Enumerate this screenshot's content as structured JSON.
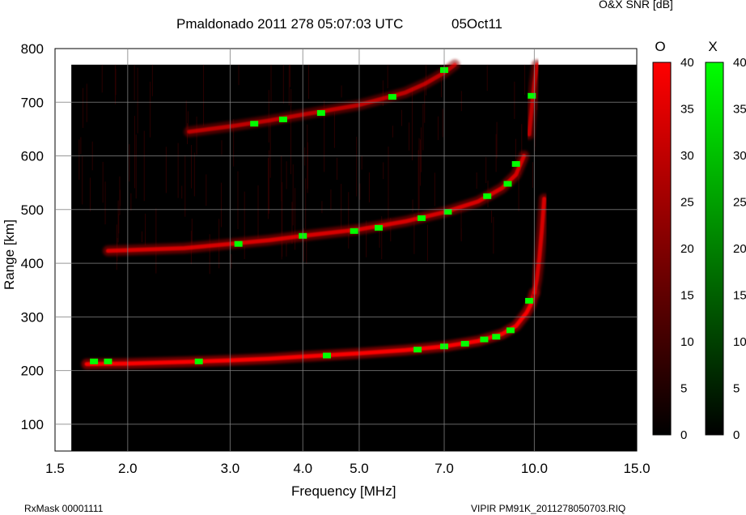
{
  "header": {
    "title": "Pmaldonado 2011 278 05:07:03 UTC",
    "date": "05Oct11",
    "colorbar_caption": "O&X SNR [dB]"
  },
  "footer": {
    "rxmask": "RxMask 00001111",
    "filename": "VIPIR  PM91K_2011278050703.RIQ"
  },
  "colors": {
    "o_mode": "#ff0000",
    "x_mode": "#00ff00",
    "background": "#000000"
  },
  "chart_data": {
    "type": "heatmap",
    "title": "Pmaldonado 2011 278 05:07:03 UTC",
    "xlabel": "Frequency [MHz]",
    "ylabel": "Range [km]",
    "x_scale": "log",
    "xlim": [
      1.5,
      15.0
    ],
    "ylim": [
      50,
      800
    ],
    "x_ticks": [
      1.5,
      2.0,
      3.0,
      4.0,
      5.0,
      7.0,
      10.0,
      15.0
    ],
    "x_tick_labels": [
      "1.5",
      "2.0",
      "3.0",
      "4.0",
      "5.0",
      "7.0",
      "10.0",
      "15.0"
    ],
    "y_ticks": [
      100,
      200,
      300,
      400,
      500,
      600,
      700,
      800
    ],
    "y_tick_labels": [
      "100",
      "200",
      "300",
      "400",
      "500",
      "600",
      "700",
      "800"
    ],
    "grid": true,
    "data_extent": {
      "freq": [
        1.6,
        15.0
      ],
      "range": [
        50,
        770
      ]
    },
    "colorbars": [
      {
        "name": "O",
        "color": "#ff0000",
        "range": [
          0,
          40
        ],
        "ticks": [
          0,
          5,
          10,
          15,
          20,
          25,
          30,
          35,
          40
        ]
      },
      {
        "name": "X",
        "color": "#00ff00",
        "range": [
          0,
          40
        ],
        "ticks": [
          0,
          5,
          10,
          15,
          20,
          25,
          30,
          35,
          40
        ]
      }
    ],
    "traces": [
      {
        "name": "O first hop",
        "mode": "O",
        "snr_db": 38,
        "freq": [
          1.7,
          2.0,
          2.5,
          3.0,
          3.5,
          4.0,
          5.0,
          6.0,
          7.0,
          8.0,
          8.8,
          9.3,
          9.7,
          9.85,
          10.0
        ],
        "range": [
          212,
          213,
          216,
          219,
          222,
          226,
          232,
          238,
          245,
          255,
          268,
          283,
          308,
          322,
          345
        ]
      },
      {
        "name": "O cusp",
        "mode": "O",
        "snr_db": 30,
        "freq": [
          10.0,
          10.1,
          10.2,
          10.3,
          10.4
        ],
        "range": [
          345,
          370,
          410,
          460,
          520
        ]
      },
      {
        "name": "O second hop",
        "mode": "O",
        "snr_db": 30,
        "freq": [
          1.85,
          2.5,
          3.0,
          3.5,
          4.0,
          5.0,
          6.0,
          7.0,
          8.0,
          8.8,
          9.3,
          9.6
        ],
        "range": [
          423,
          428,
          436,
          443,
          451,
          463,
          478,
          495,
          515,
          540,
          565,
          600
        ]
      },
      {
        "name": "O third hop",
        "mode": "O",
        "snr_db": 25,
        "freq": [
          2.55,
          3.0,
          3.5,
          4.0,
          5.0,
          6.0,
          6.5,
          7.0,
          7.3
        ],
        "range": [
          645,
          655,
          666,
          677,
          695,
          718,
          735,
          755,
          770
        ]
      },
      {
        "name": "O multi near foF2",
        "mode": "O",
        "snr_db": 25,
        "freq": [
          9.8,
          9.9,
          10.0,
          10.1
        ],
        "range": [
          640,
          690,
          735,
          770
        ]
      }
    ],
    "x_mode_patches": [
      {
        "freq": 1.75,
        "range": 217
      },
      {
        "freq": 1.85,
        "range": 217
      },
      {
        "freq": 2.65,
        "range": 217
      },
      {
        "freq": 4.4,
        "range": 228
      },
      {
        "freq": 6.3,
        "range": 239
      },
      {
        "freq": 7.0,
        "range": 245
      },
      {
        "freq": 7.6,
        "range": 250
      },
      {
        "freq": 8.2,
        "range": 258
      },
      {
        "freq": 8.6,
        "range": 263
      },
      {
        "freq": 9.1,
        "range": 275
      },
      {
        "freq": 9.8,
        "range": 330
      },
      {
        "freq": 3.1,
        "range": 436
      },
      {
        "freq": 4.0,
        "range": 451
      },
      {
        "freq": 4.9,
        "range": 460
      },
      {
        "freq": 5.4,
        "range": 466
      },
      {
        "freq": 6.4,
        "range": 484
      },
      {
        "freq": 7.1,
        "range": 496
      },
      {
        "freq": 8.3,
        "range": 525
      },
      {
        "freq": 9.0,
        "range": 548
      },
      {
        "freq": 9.3,
        "range": 585
      },
      {
        "freq": 3.3,
        "range": 660
      },
      {
        "freq": 3.7,
        "range": 668
      },
      {
        "freq": 4.3,
        "range": 680
      },
      {
        "freq": 5.7,
        "range": 710
      },
      {
        "freq": 7.0,
        "range": 760
      },
      {
        "freq": 9.9,
        "range": 712
      }
    ]
  }
}
